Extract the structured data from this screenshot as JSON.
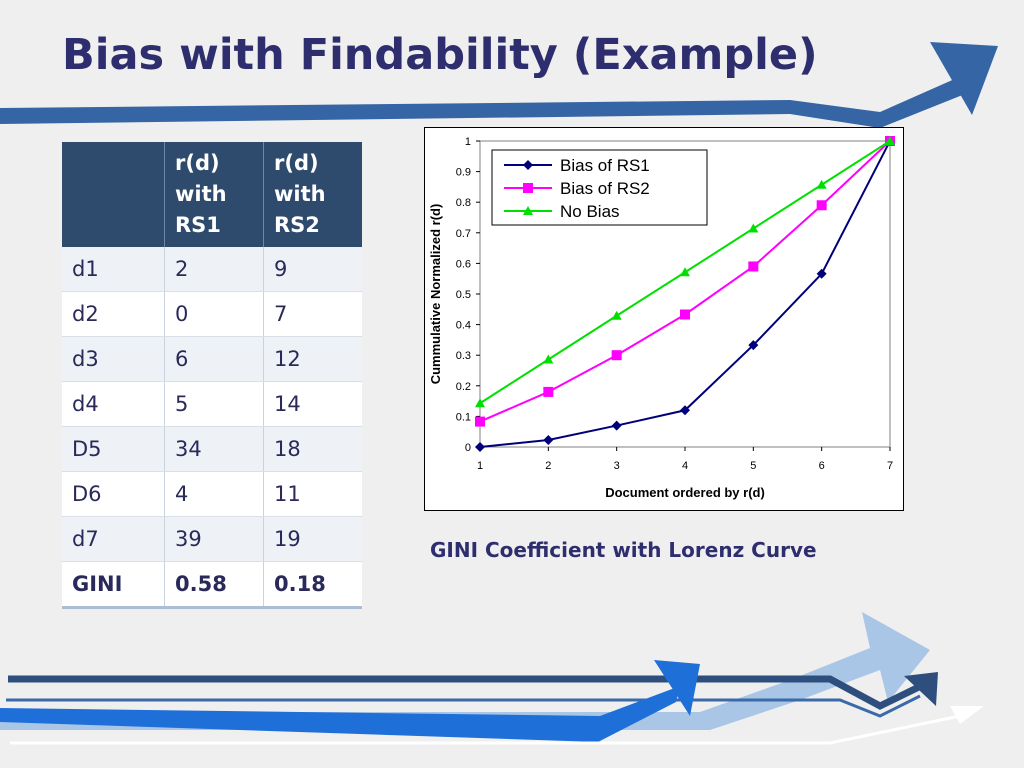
{
  "slide": {
    "title": "Bias with Findability (Example)"
  },
  "table": {
    "headers": [
      [],
      [
        "r(d)",
        "with",
        "RS1"
      ],
      [
        "r(d)",
        "with",
        "RS2"
      ]
    ],
    "rows": [
      [
        "d1",
        "2",
        "9"
      ],
      [
        "d2",
        "0",
        "7"
      ],
      [
        "d3",
        "6",
        "12"
      ],
      [
        "d4",
        "5",
        "14"
      ],
      [
        "D5",
        "34",
        "18"
      ],
      [
        "D6",
        "4",
        "11"
      ],
      [
        "d7",
        "39",
        "19"
      ]
    ],
    "total": [
      "GINI",
      "0.58",
      "0.18"
    ]
  },
  "caption": "GINI Coefficient with Lorenz Curve",
  "chart_data": {
    "type": "line",
    "xlabel": "Document ordered by r(d)",
    "ylabel": "Cummulative Normalized r(d)",
    "x": [
      1,
      2,
      3,
      4,
      5,
      6,
      7
    ],
    "xlim": [
      1,
      7
    ],
    "ylim": [
      0,
      1
    ],
    "yticks": [
      "0",
      "0.1",
      "0.2",
      "0.3",
      "0.4",
      "0.5",
      "0.6",
      "0.7",
      "0.8",
      "0.9",
      "1"
    ],
    "xticks": [
      "1",
      "2",
      "3",
      "4",
      "5",
      "6",
      "7"
    ],
    "legend_position": "top-left",
    "grid": false,
    "series": [
      {
        "name": "Bias of RS1",
        "color": "#00007a",
        "marker": "diamond",
        "values": [
          0,
          0.023,
          0.07,
          0.12,
          0.333,
          0.566,
          1
        ]
      },
      {
        "name": "Bias of RS2",
        "color": "#ff00ff",
        "marker": "square",
        "values": [
          0.083,
          0.18,
          0.3,
          0.433,
          0.59,
          0.79,
          1
        ]
      },
      {
        "name": "No Bias",
        "color": "#00e000",
        "marker": "triangle",
        "values": [
          0.143,
          0.286,
          0.429,
          0.571,
          0.714,
          0.857,
          1
        ]
      }
    ]
  }
}
